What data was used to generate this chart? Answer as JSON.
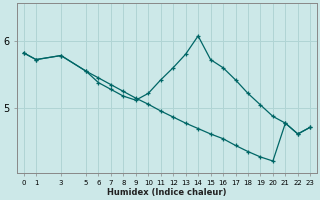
{
  "xlabel": "Humidex (Indice chaleur)",
  "background_color": "#cce8e8",
  "line_color": "#006666",
  "grid_color": "#b0d4d4",
  "curve1_x": [
    0,
    1,
    3,
    5,
    6,
    7,
    8,
    9,
    10,
    11,
    12,
    13,
    14,
    15,
    16,
    17,
    18,
    19,
    20,
    21,
    22,
    23
  ],
  "curve1_y": [
    5.82,
    5.72,
    5.78,
    5.55,
    5.38,
    5.28,
    5.18,
    5.12,
    5.22,
    5.42,
    5.6,
    5.8,
    6.07,
    5.72,
    5.6,
    5.42,
    5.22,
    5.05,
    4.88,
    4.78,
    4.62,
    4.72
  ],
  "curve2_x": [
    0,
    1,
    3,
    5,
    6,
    7,
    8,
    9,
    10,
    11,
    12,
    13,
    14,
    15,
    16,
    17,
    18,
    19,
    20,
    21,
    22,
    23
  ],
  "curve2_y": [
    5.82,
    5.72,
    5.78,
    5.55,
    5.45,
    5.35,
    5.25,
    5.15,
    5.06,
    4.96,
    4.87,
    4.78,
    4.7,
    4.62,
    4.55,
    4.45,
    4.36,
    4.28,
    4.22,
    4.78,
    4.62,
    4.72
  ],
  "yticks": [
    5,
    6
  ],
  "xticks": [
    0,
    1,
    3,
    5,
    6,
    7,
    8,
    9,
    10,
    11,
    12,
    13,
    14,
    15,
    16,
    17,
    18,
    19,
    20,
    21,
    22,
    23
  ],
  "ylim": [
    4.05,
    6.55
  ],
  "xlim": [
    -0.5,
    23.5
  ]
}
